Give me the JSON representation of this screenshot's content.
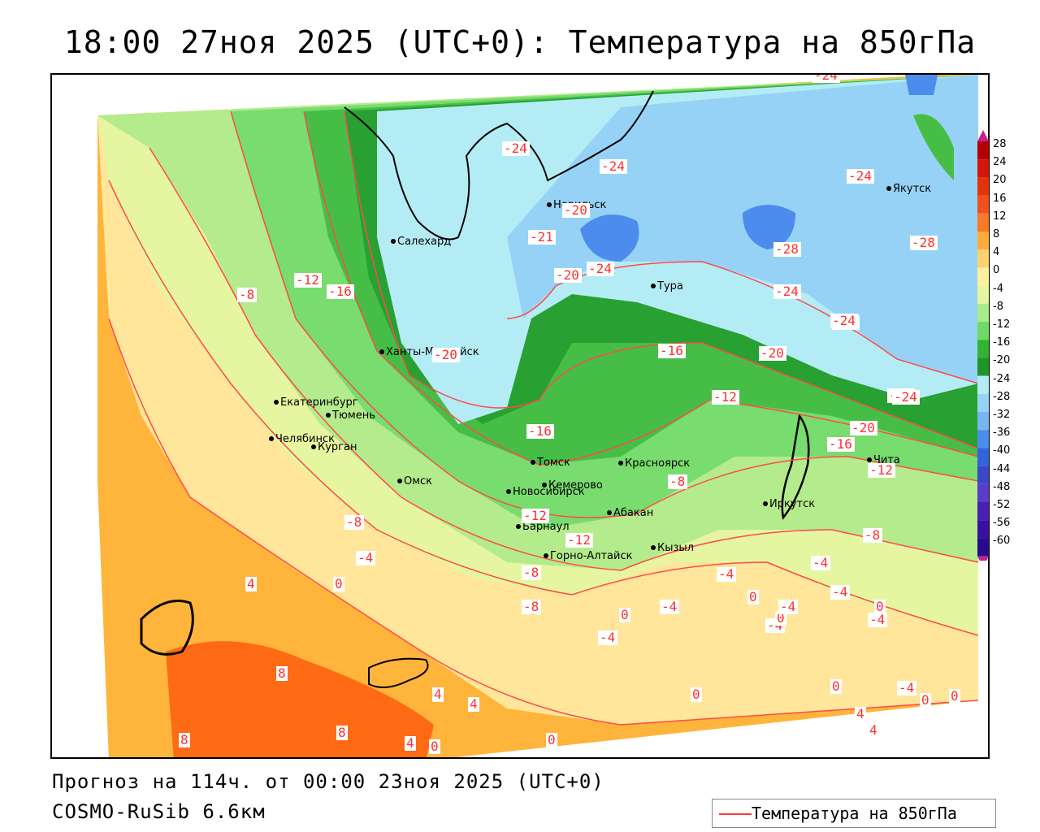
{
  "title": "18:00 27ноя 2025 (UTC+0): Температура на 850гПа",
  "footer": {
    "forecast": "Прогноз на 114ч. от 00:00 23ноя 2025 (UTC+0)",
    "model": "COSMO-RuSib 6.6км"
  },
  "legend": {
    "label": "Температура на 850гПа",
    "line_color": "#ff3a3a"
  },
  "colorbar": {
    "ticks": [
      "28",
      "24",
      "20",
      "16",
      "12",
      "8",
      "4",
      "0",
      "-4",
      "-8",
      "-12",
      "-16",
      "-20",
      "-24",
      "-28",
      "-32",
      "-36",
      "-40",
      "-44",
      "-48",
      "-52",
      "-56",
      "-60"
    ],
    "colors": [
      "#b40000",
      "#d2160a",
      "#e6320a",
      "#f0501e",
      "#fa7828",
      "#ffaa3c",
      "#ffd26e",
      "#fff0a0",
      "#e6f5a0",
      "#aaeb8c",
      "#6edc64",
      "#32b432",
      "#1e9628",
      "#b4ecf5",
      "#96d2f5",
      "#78b4f0",
      "#4b8cec",
      "#3264dc",
      "#3c46c8",
      "#5a3cc8",
      "#4b1eb4",
      "#3c0fa0",
      "#280a8c"
    ]
  },
  "cities": [
    {
      "name": "Норильск"
    },
    {
      "name": "Салехард"
    },
    {
      "name": "Тура"
    },
    {
      "name": "Якутск"
    },
    {
      "name": "Ханты-Мансийск"
    },
    {
      "name": "Екатеринбург"
    },
    {
      "name": "Тюмень"
    },
    {
      "name": "Челябинск"
    },
    {
      "name": "Курган"
    },
    {
      "name": "Омск"
    },
    {
      "name": "Новосибирск"
    },
    {
      "name": "Томск"
    },
    {
      "name": "Кемерово"
    },
    {
      "name": "Красноярск"
    },
    {
      "name": "Барнаул"
    },
    {
      "name": "Абакан"
    },
    {
      "name": "Горно-Алтайск"
    },
    {
      "name": "Кызыл"
    },
    {
      "name": "Иркутск"
    },
    {
      "name": "Чита"
    }
  ],
  "contour_labels": [
    "-24",
    "-24",
    "-24",
    "-20",
    "-24",
    "-28",
    "-21",
    "-20",
    "-24",
    "-24",
    "-28",
    "-24",
    "-24",
    "-12",
    "-16",
    "-20",
    "-16",
    "-20",
    "-24",
    "-24",
    "-16",
    "-12",
    "-20",
    "-16",
    "-12",
    "-8",
    "-8",
    "-12",
    "-8",
    "-12",
    "-8",
    "-4",
    "-4",
    "-8",
    "-4",
    "-4",
    "0",
    "4",
    "-8",
    "-4",
    "-4",
    "0",
    "0",
    "-4",
    "-4",
    "0",
    "8",
    "4",
    "4",
    "0",
    "0",
    "4",
    "8",
    "8",
    "4",
    "0",
    "0",
    "0",
    "-4",
    "0",
    "4",
    "0",
    "-4"
  ]
}
